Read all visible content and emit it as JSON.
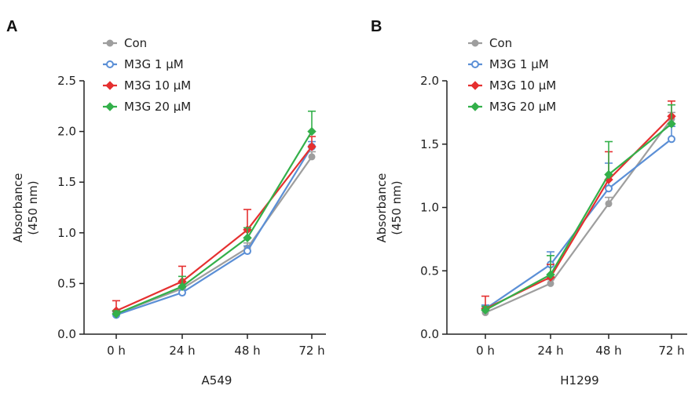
{
  "chart_data": [
    {
      "type": "line",
      "panel": "A",
      "title": "A549",
      "xlabel": "",
      "ylabel": [
        "Absorbance",
        "(450 nm)"
      ],
      "categories": [
        "0 h",
        "24 h",
        "48 h",
        "72 h"
      ],
      "ylim": [
        0,
        2.5
      ],
      "yticks": [
        "0.0",
        "0.5",
        "1.0",
        "1.5",
        "2.0",
        "2.5"
      ],
      "legend_position": "top-left",
      "series": [
        {
          "name": "Con",
          "color": "#9e9e9e",
          "marker": "filled-circle",
          "values": [
            0.2,
            0.45,
            0.85,
            1.75
          ],
          "errors": [
            0.03,
            0.05,
            0.05,
            0.05
          ]
        },
        {
          "name": "M3G 1 μM",
          "color": "#5b8fd6",
          "marker": "open-circle",
          "values": [
            0.19,
            0.41,
            0.82,
            1.85
          ],
          "errors": [
            0.03,
            0.05,
            0.05,
            0.05
          ]
        },
        {
          "name": "M3G 10 μM",
          "color": "#e53030",
          "marker": "filled-diamond",
          "values": [
            0.23,
            0.52,
            1.03,
            1.85
          ],
          "errors": [
            0.1,
            0.15,
            0.2,
            0.1
          ]
        },
        {
          "name": "M3G 20 μM",
          "color": "#33b04a",
          "marker": "filled-diamond",
          "values": [
            0.2,
            0.47,
            0.95,
            2.0
          ],
          "errors": [
            0.03,
            0.1,
            0.1,
            0.2
          ]
        }
      ]
    },
    {
      "type": "line",
      "panel": "B",
      "title": "H1299",
      "xlabel": "",
      "ylabel": [
        "Absorbance",
        "(450 nm)"
      ],
      "categories": [
        "0 h",
        "24 h",
        "48 h",
        "72 h"
      ],
      "ylim": [
        0,
        2.0
      ],
      "yticks": [
        "0.0",
        "0.5",
        "1.0",
        "1.5",
        "2.0"
      ],
      "legend_position": "top-left",
      "series": [
        {
          "name": "Con",
          "color": "#9e9e9e",
          "marker": "filled-circle",
          "values": [
            0.17,
            0.4,
            1.03,
            1.7
          ],
          "errors": [
            0.02,
            0.03,
            0.05,
            0.05
          ]
        },
        {
          "name": "M3G 1 μM",
          "color": "#5b8fd6",
          "marker": "open-circle",
          "values": [
            0.2,
            0.55,
            1.15,
            1.54
          ],
          "errors": [
            0.03,
            0.1,
            0.2,
            0.1
          ]
        },
        {
          "name": "M3G 10 μM",
          "color": "#e53030",
          "marker": "filled-diamond",
          "values": [
            0.2,
            0.45,
            1.22,
            1.72
          ],
          "errors": [
            0.1,
            0.1,
            0.22,
            0.12
          ]
        },
        {
          "name": "M3G 20 μM",
          "color": "#33b04a",
          "marker": "filled-diamond",
          "values": [
            0.19,
            0.47,
            1.26,
            1.66
          ],
          "errors": [
            0.03,
            0.15,
            0.26,
            0.15
          ]
        }
      ]
    }
  ]
}
